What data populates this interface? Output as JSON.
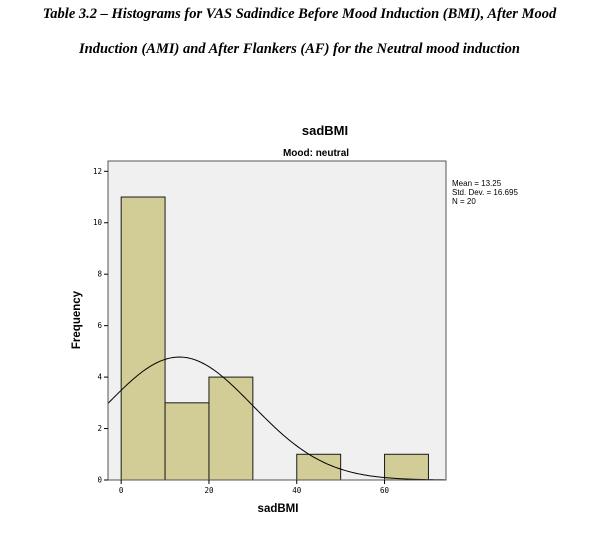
{
  "caption": {
    "line1": "Table 3.2 – Histograms for VAS Sadindice Before Mood Induction (BMI), After Mood",
    "line2": "Induction (AMI) and After Flankers (AF) for the Neutral mood induction"
  },
  "chart_data": {
    "type": "bar",
    "title": "sadBMI",
    "subtitle": "Mood: neutral",
    "xlabel": "sadBMI",
    "ylabel": "Frequency",
    "xlim": [
      -3,
      74
    ],
    "ylim": [
      0,
      12.4
    ],
    "x_ticks": [
      0,
      20,
      40,
      60
    ],
    "y_ticks": [
      0,
      2,
      4,
      6,
      8,
      10,
      12
    ],
    "bins": [
      {
        "x0": 0,
        "x1": 10,
        "count": 11
      },
      {
        "x0": 10,
        "x1": 20,
        "count": 3
      },
      {
        "x0": 20,
        "x1": 30,
        "count": 4
      },
      {
        "x0": 40,
        "x1": 50,
        "count": 1
      },
      {
        "x0": 60,
        "x1": 70,
        "count": 1
      }
    ],
    "stats": {
      "mean_label": "Mean = 13.25",
      "sd_label": "Std. Dev. = 16.695",
      "n_label": "N = 20",
      "mean": 13.25,
      "sd": 16.695,
      "n": 20,
      "bin_width": 10
    },
    "grid": false,
    "normal_curve": true,
    "colors": {
      "bar_fill": "#d2cd96",
      "bar_stroke": "#1a1a1a",
      "plot_bg": "#f0f0f0",
      "curve": "#000000"
    }
  }
}
